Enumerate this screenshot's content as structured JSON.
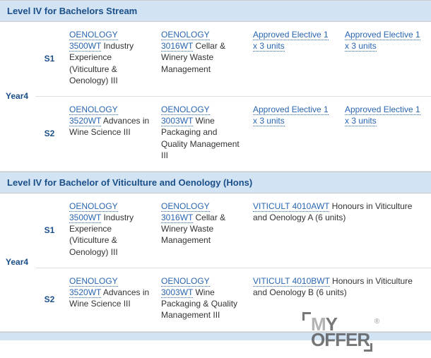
{
  "sections": [
    {
      "title": "Level IV for Bachelors Stream",
      "year_label": "Year4",
      "rows": [
        {
          "sem": "S1",
          "cells": [
            {
              "link": "OENOLOGY 3500WT",
              "text": " Industry Experience (Viticulture & Oenology) III"
            },
            {
              "link": "OENOLOGY 3016WT",
              "text": " Cellar & Winery Waste Management"
            },
            {
              "link": "Approved Elective 1 x 3 units",
              "text": ""
            },
            {
              "link": "Approved Elective 1 x 3 units",
              "text": ""
            }
          ]
        },
        {
          "sem": "S2",
          "cells": [
            {
              "link": "OENOLOGY 3520WT",
              "text": " Advances in Wine Science III"
            },
            {
              "link": "OENOLOGY 3003WT",
              "text": " Wine Packaging and Quality Management III"
            },
            {
              "link": "Approved Elective 1 x 3 units",
              "text": ""
            },
            {
              "link": "Approved Elective 1 x 3 units",
              "text": ""
            }
          ]
        }
      ]
    },
    {
      "title": "Level IV for Bachelor of Viticulture and Oenology (Hons)",
      "year_label": "Year4",
      "rows": [
        {
          "sem": "S1",
          "cells": [
            {
              "link": "OENOLOGY 3500WT",
              "text": " Industry Experience (Viticulture & Oenology) III"
            },
            {
              "link": "OENOLOGY 3016WT",
              "text": " Cellar & Winery Waste Management"
            },
            {
              "link": "VITICULT 4010AWT",
              "text": " Honours in Viticulture and Oenology A (6 units)",
              "colspan": 2
            }
          ]
        },
        {
          "sem": "S2",
          "cells": [
            {
              "link": "OENOLOGY 3520WT",
              "text": " Advances in Wine Science III"
            },
            {
              "link": "OENOLOGY 3003WT",
              "text": " Wine Packaging & Quality Management III"
            },
            {
              "link": "VITICULT 4010BWT",
              "text": " Honours in Viticulture and Oenology B (6 units)",
              "colspan": 2
            }
          ]
        }
      ]
    }
  ],
  "watermark": {
    "line1a": "M",
    "line1b": "Y",
    "line2": "OFFER",
    "reg": "®"
  },
  "styling": {
    "header_bg": "#d2e3f3",
    "header_text": "#1a4f8a",
    "link_color": "#2a66b1",
    "border_color": "#e0e0e0",
    "font_size_body": 12,
    "font_size_header": 13
  }
}
